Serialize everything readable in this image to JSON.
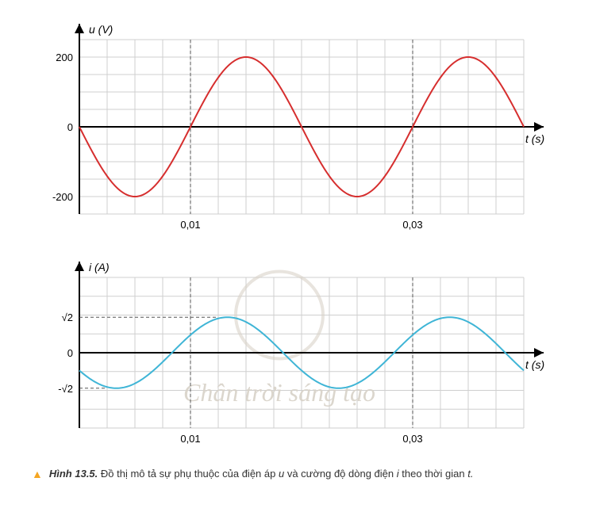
{
  "chart_u": {
    "type": "line",
    "y_label": "u (V)",
    "x_label": "t (s)",
    "y_ticks": [
      -200,
      0,
      200
    ],
    "x_ticks": [
      0.01,
      0.03
    ],
    "x_tick_labels": [
      "0,01",
      "0,03"
    ],
    "ylim": [
      -250,
      250
    ],
    "xlim": [
      0,
      0.04
    ],
    "amplitude": 200,
    "period": 0.02,
    "phase": 3.14159265,
    "line_color": "#d62e2e",
    "line_width": 2,
    "grid_color": "#cfcfcf",
    "axis_color": "#000000",
    "background_color": "#ffffff",
    "label_fontsize": 14,
    "tick_fontsize": 13,
    "grid_cols": 16,
    "grid_rows": 10,
    "dash_color": "#555555"
  },
  "chart_i": {
    "type": "line",
    "y_label": "i (A)",
    "x_label": "t (s)",
    "y_ticks_special": [
      "√2",
      "0",
      "-√2"
    ],
    "y_tick_vals": [
      1.414,
      0,
      -1.414
    ],
    "x_ticks": [
      0.01,
      0.03
    ],
    "x_tick_labels": [
      "0,01",
      "0,03"
    ],
    "ylim": [
      -3,
      3
    ],
    "xlim": [
      0,
      0.04
    ],
    "amplitude": 1.414,
    "period": 0.02,
    "phase": 3.665,
    "line_color": "#3fb5d6",
    "line_width": 2,
    "grid_color": "#cfcfcf",
    "axis_color": "#000000",
    "background_color": "#ffffff",
    "label_fontsize": 14,
    "tick_fontsize": 13,
    "grid_cols": 16,
    "grid_rows": 8,
    "dash_color": "#555555"
  },
  "watermark_text": "Chân trời sáng tạo",
  "watermark_color": "#d8d2c8",
  "caption": {
    "marker": "▲",
    "label": "Hình 13.5.",
    "text_a": "Đồ thị mô tả sự phụ thuộc của điện áp ",
    "var_u": "u",
    "text_b": " và cường độ dòng điện ",
    "var_i": "i",
    "text_c": " theo thời gian ",
    "var_t": "t."
  }
}
